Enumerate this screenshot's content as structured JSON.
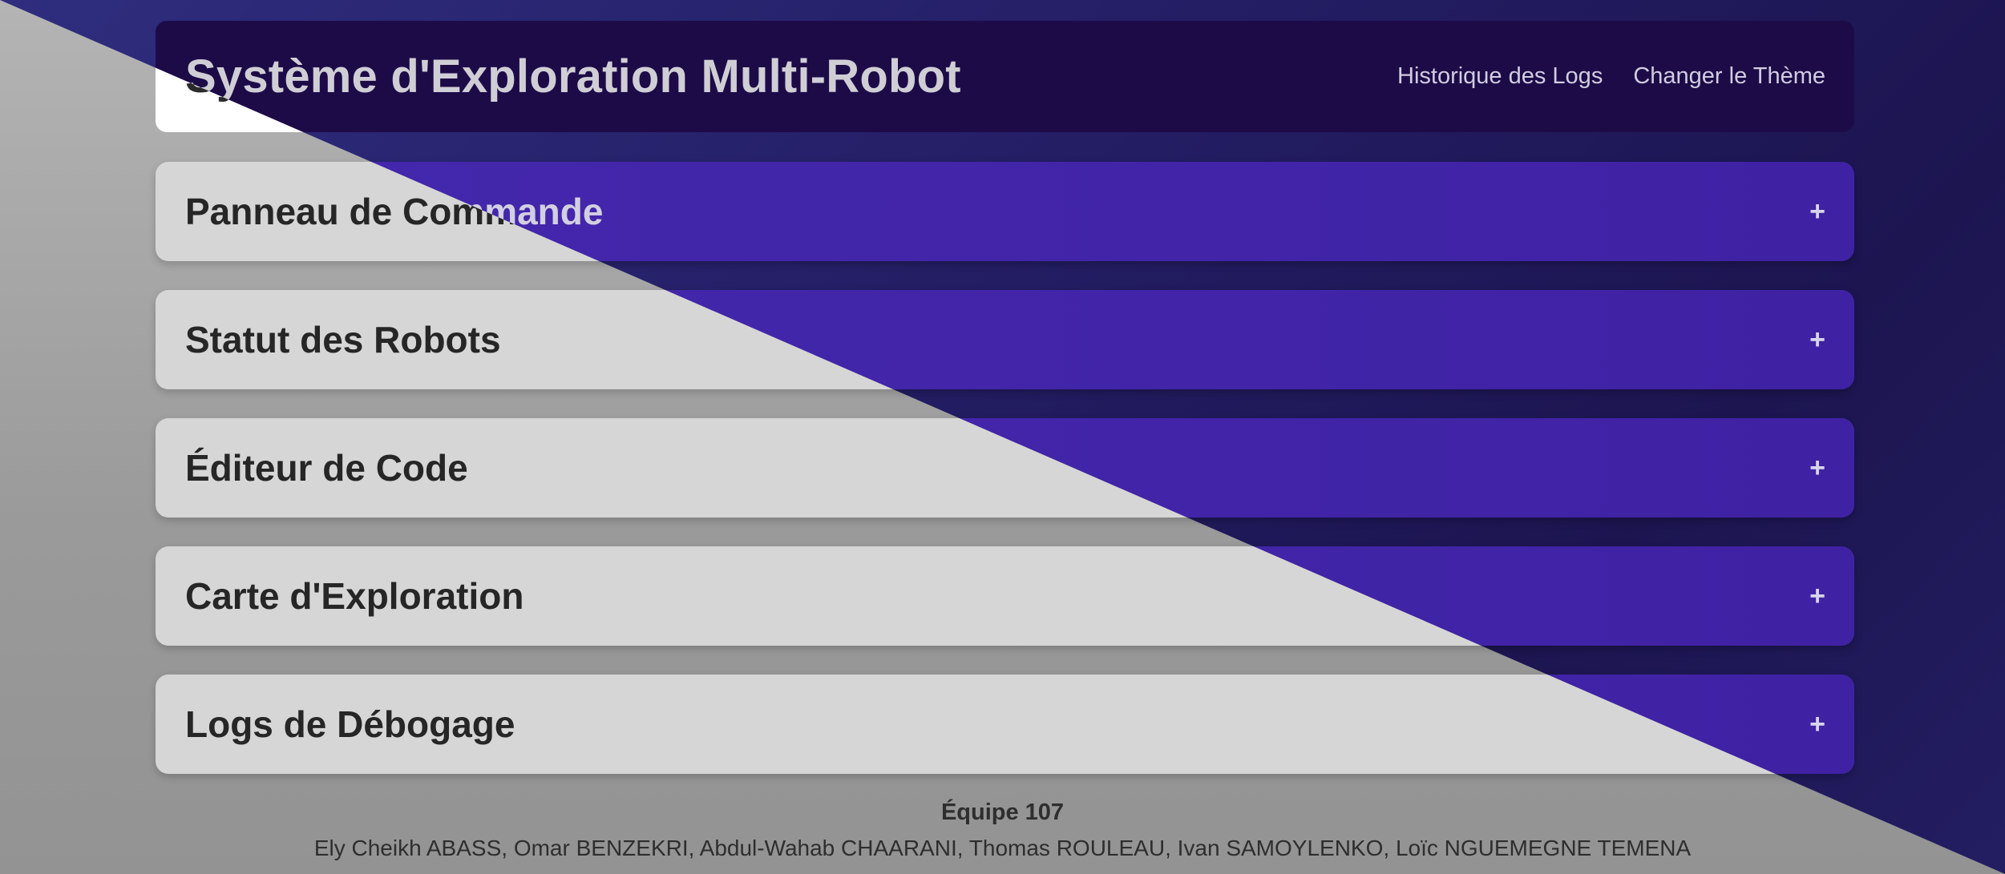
{
  "header": {
    "title": "Système d'Exploration Multi-Robot",
    "nav": {
      "logs_history": "Historique des Logs",
      "change_theme": "Changer le Thème"
    }
  },
  "sections": [
    {
      "title": "Panneau de Commande",
      "toggle": "+"
    },
    {
      "title": "Statut des Robots",
      "toggle": "+"
    },
    {
      "title": "Éditeur de Code",
      "toggle": "+"
    },
    {
      "title": "Carte d'Exploration",
      "toggle": "+"
    },
    {
      "title": "Logs de Débogage",
      "toggle": "+"
    }
  ],
  "footer": {
    "team": "Équipe 107",
    "members": "Ely Cheikh ABASS, Omar BENZEKRI, Abdul-Wahab CHAARANI, Thomas ROULEAU, Ivan SAMOYLENKO, Loïc NGUEMEGNE TEMENA"
  },
  "colors": {
    "dark_background": "#231d63",
    "dark_header": "#1d0b48",
    "dark_section": "#4428ad",
    "light_background": "#9a9a9a",
    "light_header": "#ffffff",
    "light_section": "#d6d6d6"
  }
}
